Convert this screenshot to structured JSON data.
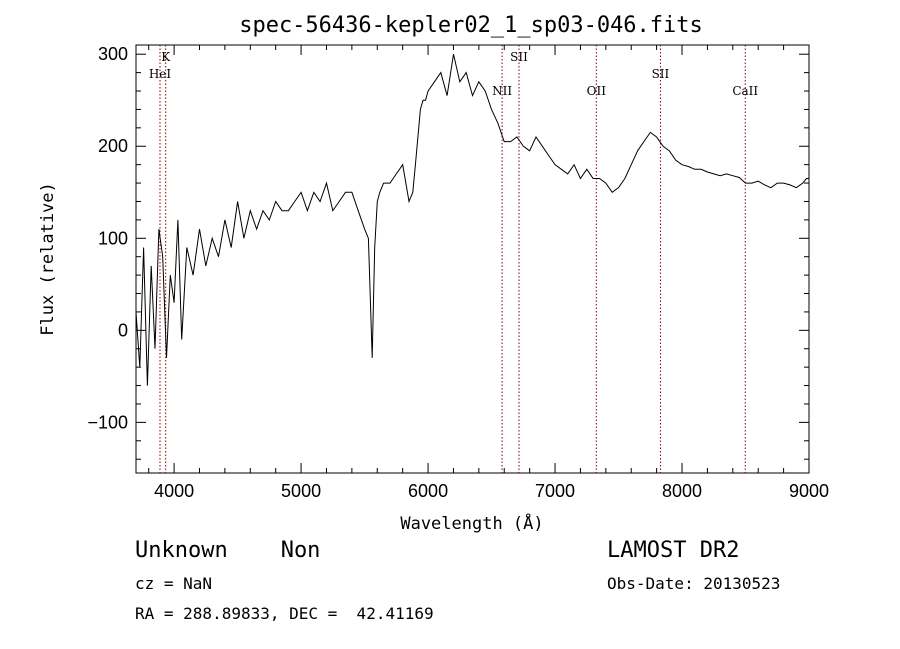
{
  "chart_data": {
    "type": "line",
    "title": "spec-56436-kepler02_1_sp03-046.fits",
    "xlabel": "Wavelength (Å)",
    "ylabel": "Flux (relative)",
    "xlim": [
      3700,
      9000
    ],
    "ylim": [
      -155,
      310
    ],
    "x_ticks": [
      4000,
      5000,
      6000,
      7000,
      8000,
      9000
    ],
    "y_ticks": [
      -100,
      0,
      100,
      200,
      300
    ],
    "grid": false,
    "line_color": "#000000",
    "marker_color": "#8b0000",
    "spectrum": {
      "x": [
        3700,
        3730,
        3760,
        3790,
        3820,
        3850,
        3880,
        3910,
        3940,
        3970,
        4000,
        4030,
        4060,
        4100,
        4150,
        4200,
        4250,
        4300,
        4350,
        4400,
        4450,
        4500,
        4550,
        4600,
        4650,
        4700,
        4750,
        4800,
        4850,
        4900,
        4950,
        5000,
        5050,
        5100,
        5150,
        5200,
        5250,
        5300,
        5350,
        5400,
        5450,
        5500,
        5530,
        5560,
        5580,
        5600,
        5620,
        5650,
        5700,
        5750,
        5800,
        5850,
        5880,
        5900,
        5920,
        5940,
        5960,
        5980,
        6000,
        6050,
        6100,
        6150,
        6200,
        6250,
        6300,
        6350,
        6400,
        6450,
        6500,
        6550,
        6600,
        6650,
        6700,
        6750,
        6800,
        6850,
        6900,
        6950,
        7000,
        7050,
        7100,
        7150,
        7200,
        7250,
        7300,
        7350,
        7400,
        7450,
        7500,
        7550,
        7600,
        7650,
        7700,
        7750,
        7800,
        7850,
        7900,
        7950,
        8000,
        8050,
        8100,
        8150,
        8200,
        8250,
        8300,
        8350,
        8400,
        8450,
        8500,
        8550,
        8600,
        8650,
        8700,
        8750,
        8800,
        8850,
        8900,
        8950,
        8980,
        9000
      ],
      "y": [
        20,
        -40,
        90,
        -60,
        70,
        -20,
        110,
        80,
        -30,
        60,
        30,
        120,
        -10,
        90,
        60,
        110,
        70,
        100,
        80,
        120,
        90,
        140,
        100,
        130,
        110,
        130,
        120,
        140,
        130,
        130,
        140,
        150,
        130,
        150,
        140,
        160,
        130,
        140,
        150,
        150,
        130,
        110,
        100,
        -30,
        90,
        140,
        150,
        160,
        160,
        170,
        180,
        140,
        150,
        180,
        210,
        240,
        250,
        250,
        260,
        270,
        280,
        255,
        300,
        270,
        280,
        255,
        270,
        260,
        240,
        225,
        205,
        205,
        210,
        200,
        195,
        210,
        200,
        190,
        180,
        175,
        170,
        180,
        165,
        175,
        165,
        165,
        160,
        150,
        155,
        165,
        180,
        195,
        205,
        215,
        210,
        200,
        195,
        185,
        180,
        178,
        175,
        175,
        172,
        170,
        168,
        170,
        168,
        166,
        160,
        160,
        162,
        158,
        155,
        160,
        160,
        158,
        155,
        160,
        165,
        165
      ]
    },
    "lines": [
      {
        "label": "K",
        "x": 3934
      },
      {
        "label": "HeI",
        "x": 3889
      },
      {
        "label": "NII",
        "x": 6583
      },
      {
        "label": "SII",
        "x": 6716
      },
      {
        "label": "OII",
        "x": 7325
      },
      {
        "label": "SII",
        "x": 7830
      },
      {
        "label": "CaII",
        "x": 8498
      }
    ]
  },
  "info": {
    "classification": "Unknown    Non",
    "survey": "LAMOST DR2",
    "redshift": "cz = NaN",
    "obs_date": "Obs-Date: 20130523",
    "coords": "RA = 288.89833, DEC =  42.41169"
  }
}
